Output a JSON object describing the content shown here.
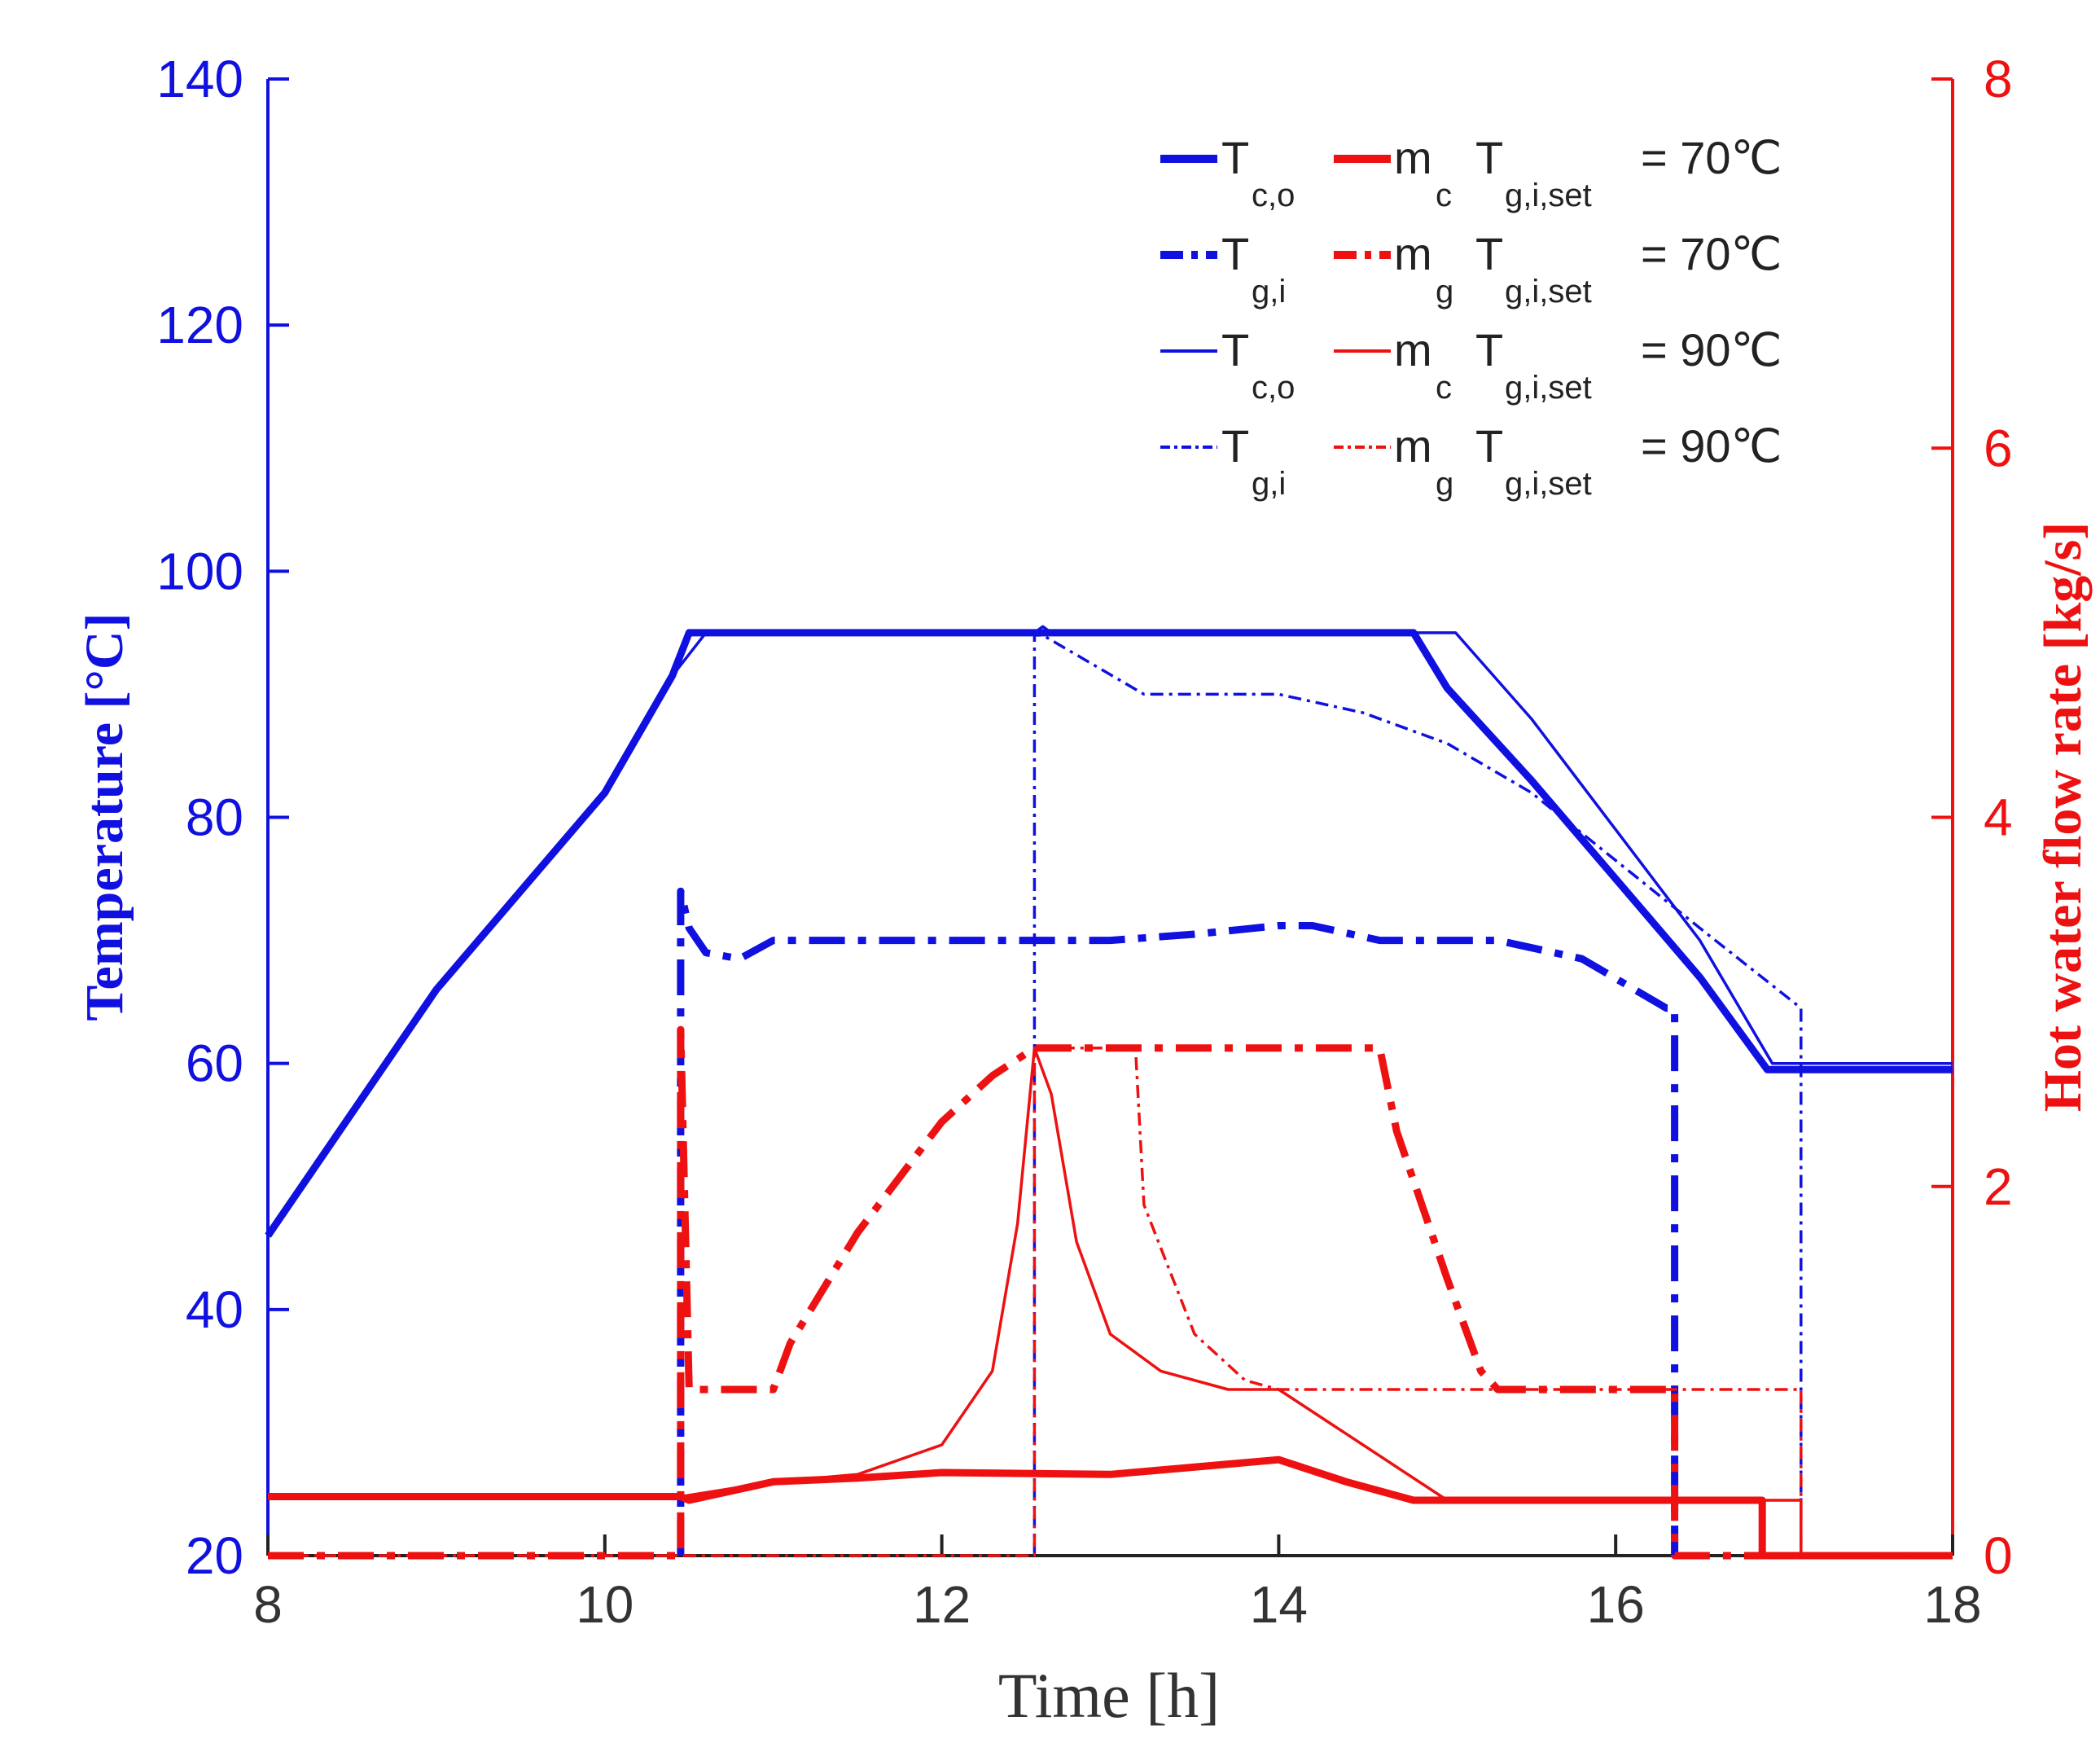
{
  "chart_data": {
    "type": "line",
    "xlabel": "Time [h]",
    "ylabel_left": "Temperature [°C]",
    "ylabel_right": "Hot water flow rate [kg/s]",
    "xlim": [
      8,
      18
    ],
    "ylim_left": [
      20,
      140
    ],
    "ylim_right": [
      0,
      8
    ],
    "xticks": [
      "8",
      "10",
      "12",
      "14",
      "16",
      "18"
    ],
    "yticks_left": [
      "20",
      "40",
      "60",
      "80",
      "100",
      "120",
      "140"
    ],
    "yticks_right": [
      "0",
      "2",
      "4",
      "6",
      "8"
    ],
    "grid": false,
    "legend_position": "top-right",
    "colors": {
      "temperature": "#1010e0",
      "flow": "#ee1111",
      "baseline": "#222222"
    },
    "legend": [
      {
        "t_main": "T",
        "t_sub": "c,o",
        "m_main": "m",
        "m_sub": "c",
        "set_main": "T",
        "set_sub": "g,i,set",
        "value": "= 70℃",
        "weight": "thick",
        "style": "solid"
      },
      {
        "t_main": "T",
        "t_sub": "g,i",
        "m_main": "m",
        "m_sub": "g",
        "set_main": "T",
        "set_sub": "g,i,set",
        "value": "= 70℃",
        "weight": "thick",
        "style": "dashdot"
      },
      {
        "t_main": "T",
        "t_sub": "c,o",
        "m_main": "m",
        "m_sub": "c",
        "set_main": "T",
        "set_sub": "g,i,set",
        "value": "= 90℃",
        "weight": "thin",
        "style": "solid"
      },
      {
        "t_main": "T",
        "t_sub": "g,i",
        "m_main": "m",
        "m_sub": "g",
        "set_main": "T",
        "set_sub": "g,i,set",
        "value": "= 90℃",
        "weight": "thin",
        "style": "dashdot"
      }
    ],
    "series": [
      {
        "axis": "left",
        "color": "flow_none",
        "weight": "thick",
        "style": "solid",
        "case": "70",
        "quantity": "Tc,o",
        "points": [
          [
            8,
            46
          ],
          [
            9,
            66
          ],
          [
            10,
            82
          ],
          [
            10.4,
            91.5
          ],
          [
            10.5,
            95
          ],
          [
            14.8,
            95
          ],
          [
            15,
            90.5
          ],
          [
            15.5,
            83
          ],
          [
            16,
            75
          ],
          [
            16.5,
            67
          ],
          [
            16.9,
            59.5
          ],
          [
            18,
            59.5
          ]
        ]
      },
      {
        "axis": "left",
        "weight": "thin",
        "style": "solid",
        "case": "90",
        "quantity": "Tc,o",
        "points": [
          [
            8,
            46
          ],
          [
            9,
            66
          ],
          [
            10,
            82
          ],
          [
            10.4,
            91.5
          ],
          [
            10.6,
            95
          ],
          [
            12.55,
            95
          ],
          [
            12.6,
            95.5
          ],
          [
            12.65,
            95
          ],
          [
            15.05,
            95
          ],
          [
            15.5,
            88
          ],
          [
            16,
            79
          ],
          [
            16.5,
            70
          ],
          [
            16.93,
            60
          ],
          [
            18,
            60
          ]
        ]
      },
      {
        "axis": "left",
        "weight": "thick",
        "style": "dashdot",
        "case": "70",
        "quantity": "Tg,i",
        "points": [
          [
            10.45,
            20
          ],
          [
            10.45,
            74
          ],
          [
            10.5,
            71
          ],
          [
            10.6,
            69
          ],
          [
            10.8,
            68.5
          ],
          [
            11,
            70
          ],
          [
            12,
            70
          ],
          [
            13,
            70
          ],
          [
            13.5,
            70.5
          ],
          [
            14,
            71.2
          ],
          [
            14.2,
            71.2
          ],
          [
            14.6,
            70
          ],
          [
            15.3,
            70
          ],
          [
            15.8,
            68.5
          ],
          [
            16.3,
            64.5
          ],
          [
            16.35,
            64.5
          ],
          [
            16.35,
            20
          ]
        ]
      },
      {
        "axis": "left",
        "weight": "thin",
        "style": "dashdot",
        "case": "90",
        "quantity": "Tg,i",
        "points": [
          [
            12.55,
            20
          ],
          [
            12.55,
            94.8
          ],
          [
            12.6,
            94.8
          ],
          [
            13.2,
            90
          ],
          [
            14,
            90
          ],
          [
            14.5,
            88.5
          ],
          [
            15,
            86
          ],
          [
            15.5,
            82
          ],
          [
            16,
            76.5
          ],
          [
            16.5,
            71
          ],
          [
            17.1,
            64.5
          ],
          [
            17.1,
            20
          ]
        ]
      },
      {
        "axis": "right",
        "weight": "thick",
        "style": "solid",
        "case": "70",
        "quantity": "mc",
        "points": [
          [
            8,
            0.32
          ],
          [
            10.45,
            0.32
          ],
          [
            10.5,
            0.3
          ],
          [
            11,
            0.4
          ],
          [
            11.5,
            0.42
          ],
          [
            12,
            0.45
          ],
          [
            13,
            0.44
          ],
          [
            14,
            0.52
          ],
          [
            14.4,
            0.4
          ],
          [
            14.8,
            0.3
          ],
          [
            16.87,
            0.3
          ],
          [
            16.87,
            0
          ],
          [
            18,
            0
          ]
        ]
      },
      {
        "axis": "right",
        "weight": "thin",
        "style": "solid",
        "case": "90",
        "quantity": "mc",
        "points": [
          [
            8,
            0.32
          ],
          [
            10.45,
            0.32
          ],
          [
            11,
            0.4
          ],
          [
            11.5,
            0.44
          ],
          [
            12,
            0.6
          ],
          [
            12.3,
            1.0
          ],
          [
            12.45,
            1.8
          ],
          [
            12.55,
            2.75
          ],
          [
            12.65,
            2.5
          ],
          [
            12.8,
            1.7
          ],
          [
            13,
            1.2
          ],
          [
            13.3,
            1.0
          ],
          [
            13.7,
            0.9
          ],
          [
            14,
            0.9
          ],
          [
            14.5,
            0.6
          ],
          [
            15,
            0.3
          ],
          [
            17.1,
            0.3
          ],
          [
            17.1,
            0
          ],
          [
            18,
            0
          ]
        ]
      },
      {
        "axis": "right",
        "weight": "thick",
        "style": "dashdot",
        "case": "70",
        "quantity": "mg",
        "points": [
          [
            8,
            0
          ],
          [
            10.45,
            0
          ],
          [
            10.45,
            2.85
          ],
          [
            10.5,
            0.9
          ],
          [
            11,
            0.9
          ],
          [
            11.1,
            1.15
          ],
          [
            11.5,
            1.75
          ],
          [
            12,
            2.35
          ],
          [
            12.3,
            2.6
          ],
          [
            12.55,
            2.75
          ],
          [
            14.6,
            2.75
          ],
          [
            14.7,
            2.3
          ],
          [
            15,
            1.5
          ],
          [
            15.2,
            1.0
          ],
          [
            15.3,
            0.9
          ],
          [
            16.35,
            0.9
          ],
          [
            16.35,
            0
          ],
          [
            18,
            0
          ]
        ]
      },
      {
        "axis": "right",
        "weight": "thin",
        "style": "dashdot",
        "case": "90",
        "quantity": "mg",
        "points": [
          [
            8,
            0
          ],
          [
            12.55,
            0
          ],
          [
            12.55,
            2.75
          ],
          [
            13.15,
            2.75
          ],
          [
            13.2,
            1.9
          ],
          [
            13.5,
            1.2
          ],
          [
            13.8,
            0.95
          ],
          [
            14,
            0.9
          ],
          [
            17.1,
            0.9
          ],
          [
            17.1,
            0
          ],
          [
            18,
            0
          ]
        ]
      }
    ]
  }
}
